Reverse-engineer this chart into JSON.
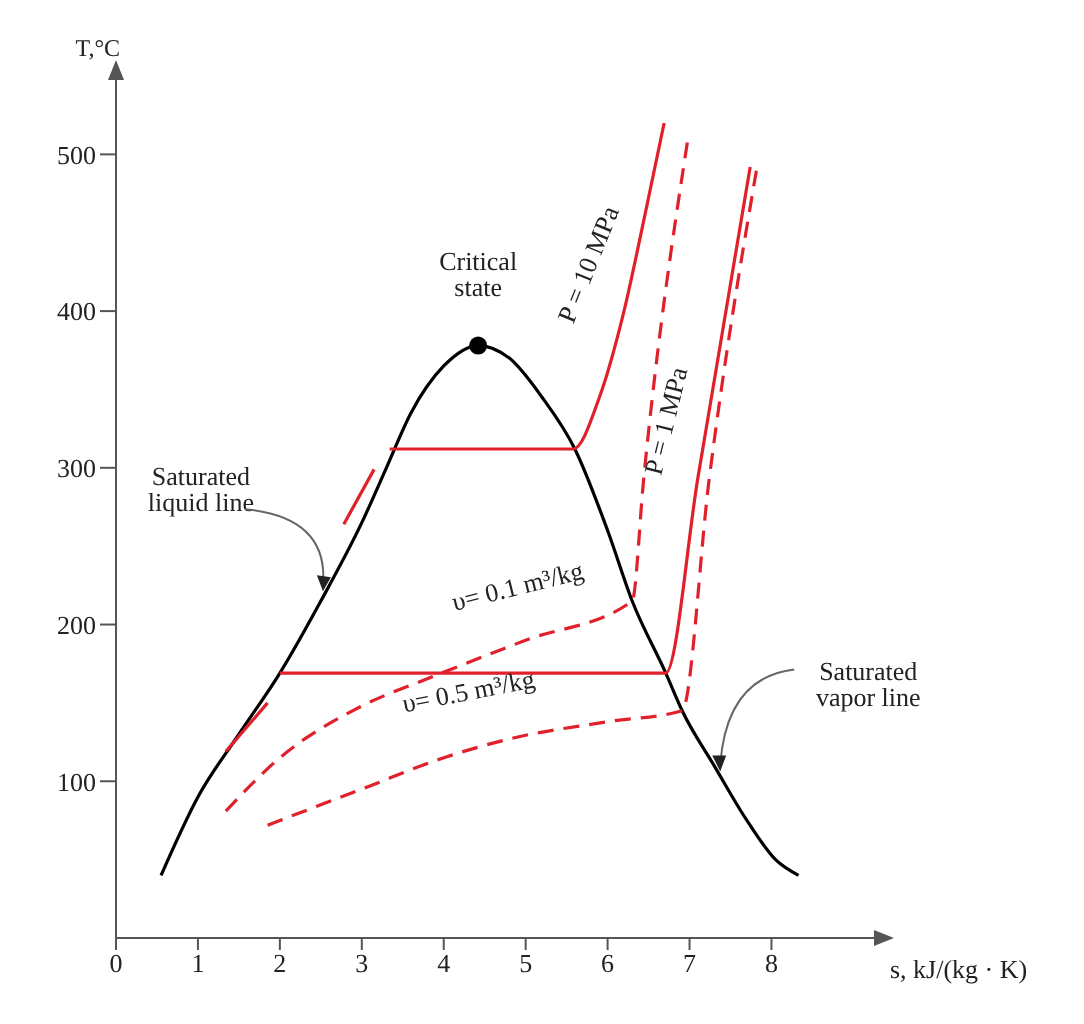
{
  "chart_data": {
    "type": "line",
    "xlabel": "s, kJ/(kg · K)",
    "ylabel": "T,°C",
    "xlim": [
      0,
      9.3
    ],
    "xticks": [
      0,
      1,
      2,
      3,
      4,
      5,
      6,
      7,
      8
    ],
    "ylim": [
      0,
      550
    ],
    "yticks": [
      100,
      200,
      300,
      400,
      500
    ],
    "marker": "none",
    "line_style": "solid",
    "series": [
      {
        "color": "#000000",
        "x": [
          0.55,
          1,
          1.5,
          2,
          2.5,
          3,
          3.3,
          3.6,
          4,
          4.42,
          4.8,
          5.2,
          5.6,
          6,
          6.3,
          6.71,
          6.91,
          7.3,
          7.7,
          8.05,
          8.33
        ],
        "values": [
          40,
          90,
          130,
          169,
          215,
          265,
          300,
          335,
          365,
          378,
          370,
          345,
          312,
          260,
          215,
          169,
          145,
          110,
          75,
          50,
          40
        ]
      },
      {
        "color": "#e0202a",
        "x": [
          2.78,
          3.15,
          3.2,
          3.34,
          5.58,
          5.9,
          6.2,
          6.45,
          6.69
        ],
        "values": [
          264,
          299,
          null,
          312,
          312,
          345,
          400,
          460,
          520
        ]
      },
      {
        "color": "#e0202a",
        "x": [
          1.34,
          1.85,
          1.9,
          2,
          6.71,
          7.1,
          7.74
        ],
        "values": [
          119,
          150,
          null,
          169,
          169,
          293,
          492
        ]
      },
      {
        "color": "#e0202a",
        "line_style": "dashed",
        "x": [
          1.34,
          2,
          3,
          3.83,
          5,
          6.3,
          6.44,
          6.98
        ],
        "values": [
          81,
          115,
          148,
          166,
          190,
          215,
          293,
          510
        ]
      },
      {
        "color": "#e0202a",
        "line_style": "dashed",
        "x": [
          1.85,
          3,
          4,
          4.8,
          6,
          6.91,
          7.24,
          7.82
        ],
        "values": [
          72,
          95,
          115,
          127,
          138,
          145,
          293,
          491
        ]
      },
      {
        "type": "scatter",
        "color": "#000000",
        "marker": "circle",
        "x": [
          4.42
        ],
        "values": [
          378
        ]
      }
    ],
    "annotations": [
      {
        "text": "Critical state",
        "x": 4.42,
        "y": 378
      },
      {
        "text": "Saturated liquid line",
        "x": 2.55,
        "y": 220
      },
      {
        "text": "Saturated vapor line",
        "x": 7.35,
        "y": 105
      },
      "P = 10 MPa",
      "P = 1 MPa",
      "υ= 0.1 m³/kg",
      "υ= 0.5 m³/kg"
    ]
  }
}
